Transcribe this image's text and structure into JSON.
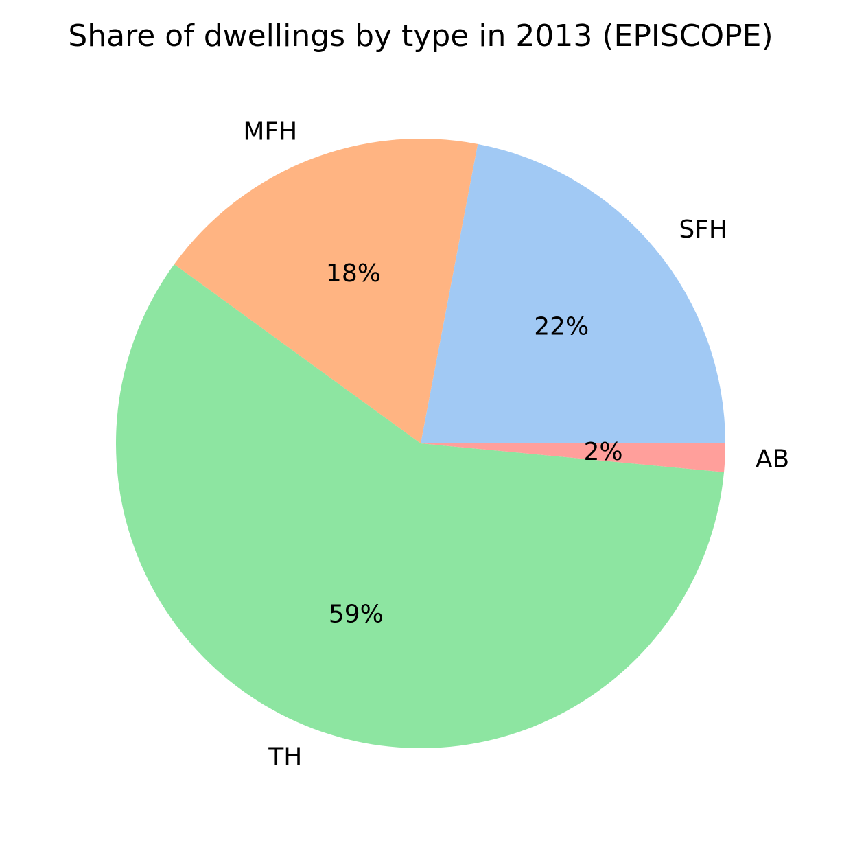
{
  "chart_data": {
    "type": "pie",
    "title": "Share of dwellings by type in 2013 (EPISCOPE)",
    "start_angle_deg": 0,
    "direction": "counterclockwise",
    "slices": [
      {
        "label": "SFH",
        "value": 22,
        "pct_label": "22%",
        "color": "#a1c9f4"
      },
      {
        "label": "MFH",
        "value": 18,
        "pct_label": "18%",
        "color": "#ffb482"
      },
      {
        "label": "TH",
        "value": 58.5,
        "pct_label": "59%",
        "color": "#8de5a1"
      },
      {
        "label": "AB",
        "value": 1.5,
        "pct_label": "2%",
        "color": "#ff9f9b"
      }
    ]
  }
}
